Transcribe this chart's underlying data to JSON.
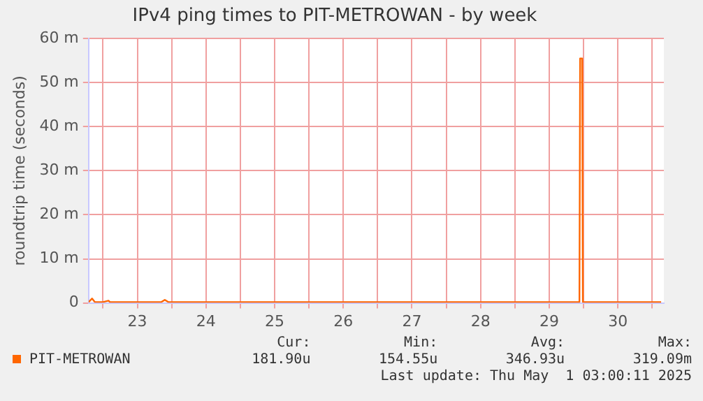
{
  "chart_data": {
    "type": "line",
    "title": "IPv4 ping times to PIT-METROWAN - by week",
    "ylabel": "roundtrip time (seconds)",
    "x": [
      22.79,
      22.84,
      22.88,
      23.0,
      23.08,
      23.1,
      23.85,
      23.9,
      23.95,
      29.94,
      29.95,
      29.98,
      29.99,
      31.1,
      31.13
    ],
    "series": [
      {
        "name": "PIT-METROWAN",
        "color": "#ff6600",
        "values": [
          0.2,
          1,
          0.2,
          0.2,
          0.5,
          0.2,
          0.2,
          0.7,
          0.2,
          0.2,
          55.5,
          55.5,
          0.2,
          0.2,
          0.2
        ]
      }
    ],
    "xlim": [
      22.79,
      31.17
    ],
    "xticks": [
      {
        "value": 23,
        "label": null
      },
      {
        "value": 23.5,
        "label": "23"
      },
      {
        "value": 24,
        "label": null
      },
      {
        "value": 24.5,
        "label": "24"
      },
      {
        "value": 25,
        "label": null
      },
      {
        "value": 25.5,
        "label": "25"
      },
      {
        "value": 26,
        "label": null
      },
      {
        "value": 26.5,
        "label": "26"
      },
      {
        "value": 27,
        "label": null
      },
      {
        "value": 27.5,
        "label": "27"
      },
      {
        "value": 28,
        "label": null
      },
      {
        "value": 28.5,
        "label": "28"
      },
      {
        "value": 29,
        "label": null
      },
      {
        "value": 29.5,
        "label": "29"
      },
      {
        "value": 30,
        "label": null
      },
      {
        "value": 30.5,
        "label": "30"
      },
      {
        "value": 31,
        "label": null
      }
    ],
    "ylim": [
      0,
      60
    ],
    "yticks": [
      0,
      {
        "value": 10,
        "label": "10 m"
      },
      {
        "value": 20,
        "label": "20 m"
      },
      {
        "value": 30,
        "label": "30 m"
      },
      {
        "value": 40,
        "label": "40 m"
      },
      {
        "value": 50,
        "label": "50 m"
      },
      {
        "value": 60,
        "label": "60 m"
      }
    ],
    "grid": true,
    "legend": "bottom",
    "marker": "none",
    "line_style": "solid",
    "annotations": [
      "Cur:",
      "Min:",
      "Avg:",
      "Max:",
      "181.90u",
      "154.55u",
      "346.93u",
      "319.09m",
      "Last update: Thu May  1 03:00:11 2025"
    ]
  }
}
